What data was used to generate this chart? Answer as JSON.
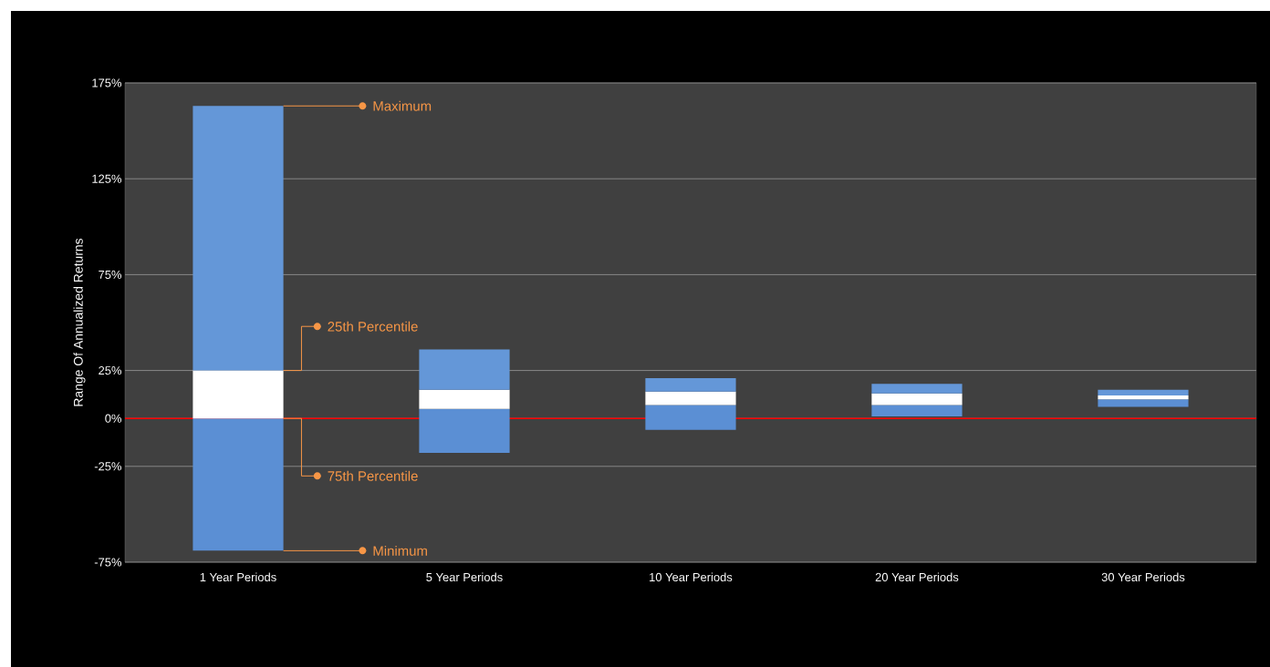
{
  "chart_data": {
    "type": "bar",
    "ylabel": "Range Of Annualized Returns",
    "categories": [
      "1 Year Periods",
      "5 Year Periods",
      "10 Year Periods",
      "20 Year Periods",
      "30 Year Periods"
    ],
    "series": [
      {
        "color": "#5b8fd4",
        "base": [
          -69,
          -18,
          -6,
          1,
          6
        ],
        "values": [
          69,
          23,
          13,
          6,
          4
        ]
      },
      {
        "color": "#ffffff",
        "base": [
          0,
          5,
          7,
          7,
          10
        ],
        "values": [
          25,
          10,
          7,
          6,
          2
        ]
      },
      {
        "color": "#6497d8",
        "base": [
          25,
          15,
          14,
          13,
          12
        ],
        "values": [
          138,
          21,
          7,
          5,
          3
        ]
      }
    ],
    "ylim": [
      -75,
      175
    ],
    "yticks": [
      {
        "value": -75,
        "label": "-75%"
      },
      {
        "value": -25,
        "label": "-25%"
      },
      {
        "value": 0,
        "label": "0%"
      },
      {
        "value": 25,
        "label": "25%"
      },
      {
        "value": 75,
        "label": "75%"
      },
      {
        "value": 125,
        "label": "125%"
      },
      {
        "value": 175,
        "label": "175%"
      }
    ],
    "grid": "y",
    "ref_lines": [
      {
        "axis": "y",
        "value": 0,
        "color": "#ff0000"
      }
    ],
    "annotations": [
      "Maximum",
      "25th Percentile",
      "75th Percentile",
      "Minimum"
    ]
  }
}
